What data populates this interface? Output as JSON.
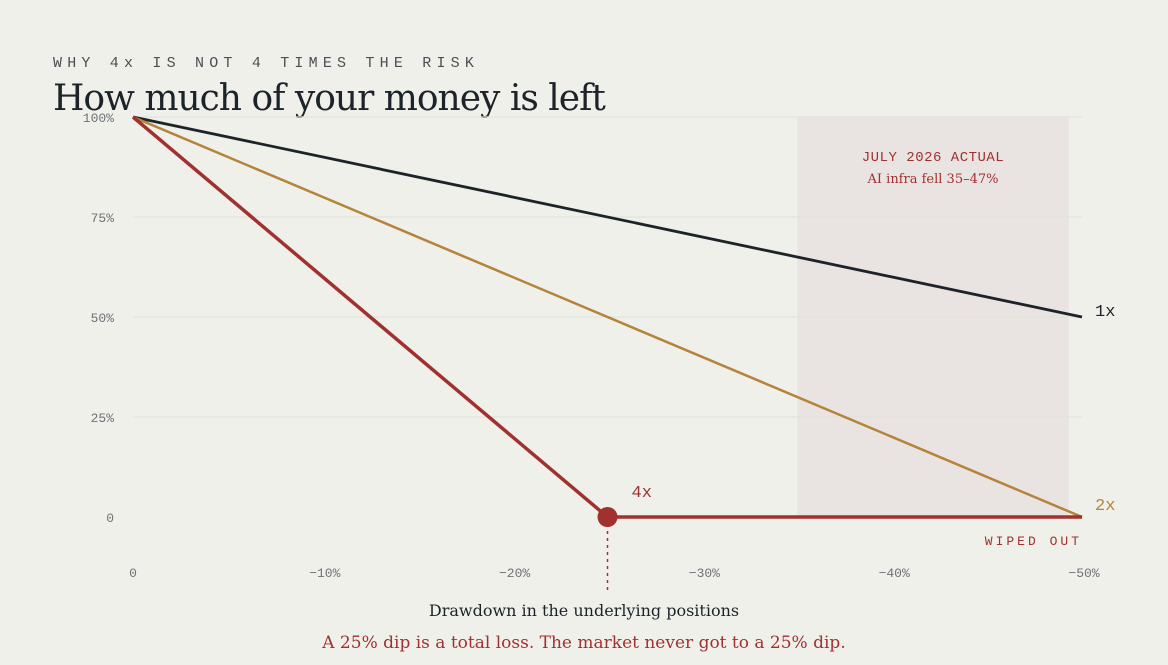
{
  "header": {
    "eyebrow": "WHY 4x IS NOT 4 TIMES THE RISK",
    "title": "How much of your money is left"
  },
  "chart_data": {
    "type": "line",
    "title": "How much of your money is left",
    "subtitle": "WHY 4x IS NOT 4 TIMES THE RISK",
    "xlabel": "Drawdown in the underlying positions",
    "ylabel": "",
    "xlim": [
      0,
      -50
    ],
    "ylim": [
      0,
      100
    ],
    "x_ticks": [
      0,
      -10,
      -20,
      -30,
      -40,
      -50
    ],
    "x_tick_labels": [
      "0",
      "−10%",
      "−20%",
      "−30%",
      "−40%",
      "−50%"
    ],
    "y_ticks": [
      0,
      25,
      50,
      75,
      100
    ],
    "y_tick_labels": [
      "0",
      "25%",
      "50%",
      "75%",
      "100%"
    ],
    "grid": "horizontal",
    "series": [
      {
        "name": "1x",
        "color": "#1c2329",
        "x": [
          0,
          -50
        ],
        "y": [
          100,
          50
        ]
      },
      {
        "name": "2x",
        "color": "#b5833a",
        "x": [
          0,
          -50
        ],
        "y": [
          100,
          0
        ]
      },
      {
        "name": "4x",
        "color": "#a1312e",
        "x": [
          0,
          -25,
          -50
        ],
        "y": [
          100,
          0,
          0
        ]
      }
    ],
    "wipeout_point": {
      "x": -25,
      "y": 0
    },
    "shaded_region": {
      "x": [
        -35,
        -50
      ],
      "title": "JULY 2026 ACTUAL",
      "subtitle": "AI infra fell 35–47%"
    },
    "annotations": {
      "zero_line_label": "WIPED OUT",
      "caption": "A 25% dip is a total loss. The market never got to a 25% dip."
    }
  }
}
